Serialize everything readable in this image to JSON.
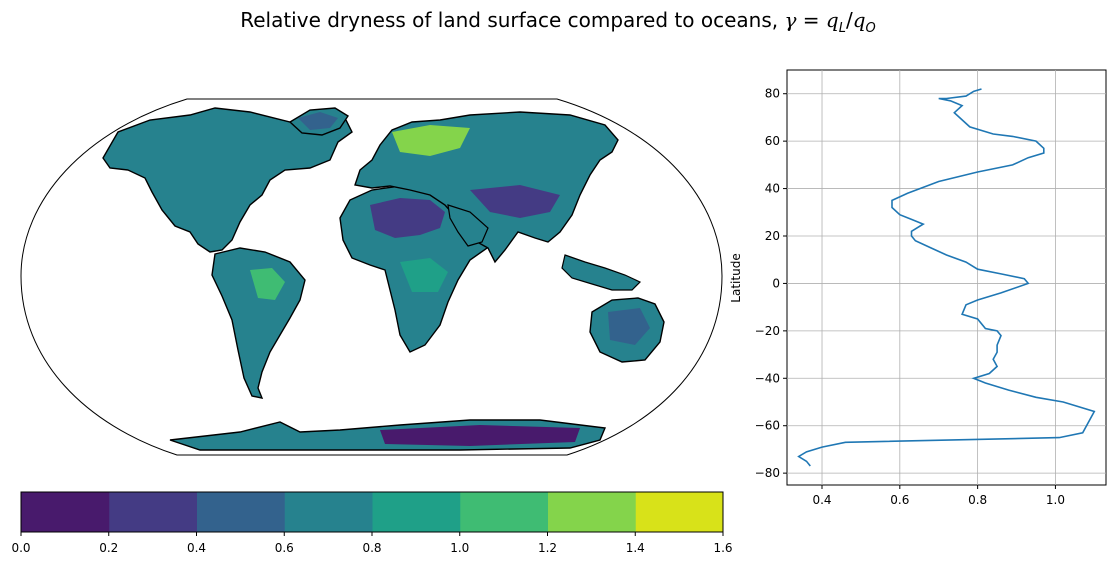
{
  "figure": {
    "title_prefix": "Relative dryness of land surface compared to oceans,",
    "title_math_lhs": "γ",
    "title_math_eq": " = ",
    "title_math_q1": "q",
    "title_math_sub1": "L",
    "title_math_slash": "/",
    "title_math_q2": "q",
    "title_math_sub2": "O"
  },
  "colors": {
    "levels": [
      "#481a6c",
      "#443b84",
      "#33628d",
      "#26828e",
      "#1fa088",
      "#3fbc73",
      "#84d44b",
      "#d8e219"
    ],
    "line": "#1f77b4",
    "grid": "#b0b0b0",
    "ocean": "#ffffff",
    "coast": "#000000"
  },
  "chart_data": [
    {
      "type": "heatmap",
      "description_of_mark": "Robinson-projection global map of gamma over land (filled contours), white ocean",
      "colorbar": {
        "levels": [
          0.0,
          0.2,
          0.4,
          0.6,
          0.8,
          1.0,
          1.2,
          1.4,
          1.6
        ],
        "tick_labels": [
          "0.0",
          "0.2",
          "0.4",
          "0.6",
          "0.8",
          "1.0",
          "1.2",
          "1.4",
          "1.6"
        ]
      }
    },
    {
      "type": "line",
      "xlim": [
        0.31,
        1.13
      ],
      "ylim": [
        -85,
        90
      ],
      "xticks": [
        0.4,
        0.6,
        0.8,
        1.0
      ],
      "xtick_labels": [
        "0.4",
        "0.6",
        "0.8",
        "1.0"
      ],
      "yticks": [
        -80,
        -60,
        -40,
        -20,
        0,
        20,
        40,
        60,
        80
      ],
      "ytick_labels": [
        "−80",
        "−60",
        "−40",
        "−20",
        "0",
        "20",
        "40",
        "60",
        "80"
      ],
      "ylabel": "Latitude",
      "grid": true,
      "series": [
        {
          "x": [
            0.37,
            0.36,
            0.34,
            0.36,
            0.4,
            0.46,
            1.01,
            1.07,
            1.1,
            1.02,
            0.95,
            0.88,
            0.82,
            0.79,
            0.83,
            0.85,
            0.84,
            0.85,
            0.85,
            0.86,
            0.85,
            0.82,
            0.8,
            0.76,
            0.77,
            0.8,
            0.86,
            0.93,
            0.92,
            0.86,
            0.8,
            0.77,
            0.72,
            0.68,
            0.64,
            0.63,
            0.63,
            0.66,
            0.63,
            0.6,
            0.58,
            0.58,
            0.62,
            0.7,
            0.8,
            0.89,
            0.93,
            0.97,
            0.97,
            0.95,
            0.89,
            0.84,
            0.78,
            0.74,
            0.76,
            0.73,
            0.7,
            0.72,
            0.77,
            0.79,
            0.81
          ],
          "y": [
            -77,
            -75,
            -73,
            -71,
            -69,
            -67,
            -65,
            -63,
            -54,
            -50,
            -48,
            -45,
            -42,
            -40,
            -38,
            -35,
            -32,
            -29,
            -26,
            -22,
            -20,
            -19,
            -15,
            -13,
            -9,
            -7,
            -4,
            0,
            2,
            4,
            6,
            9,
            12,
            15,
            18,
            20,
            22,
            25,
            27,
            29,
            32,
            35,
            38,
            43,
            47,
            50,
            53,
            55,
            57,
            60,
            62,
            63,
            66,
            72,
            75,
            77,
            78,
            78,
            79,
            81,
            82
          ]
        }
      ]
    }
  ]
}
